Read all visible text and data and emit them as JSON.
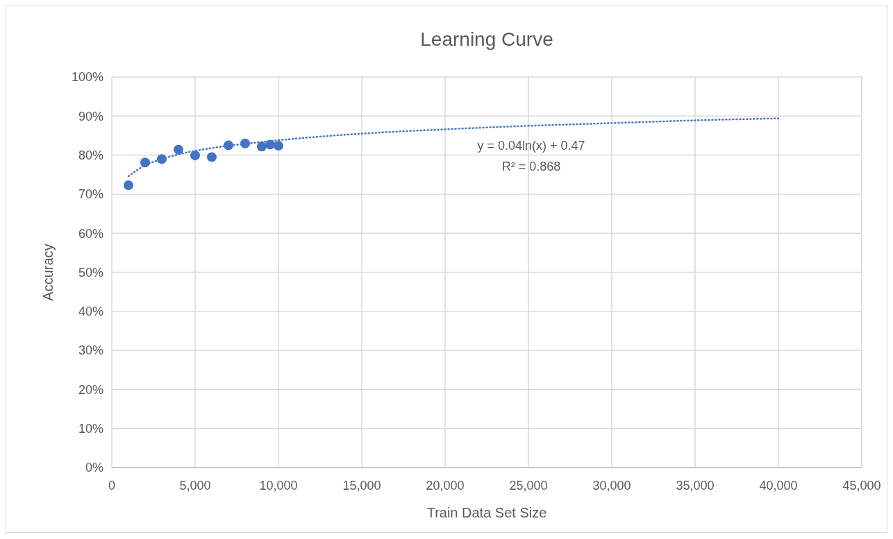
{
  "chart_data": {
    "type": "scatter",
    "title": "Learning Curve",
    "xlabel": "Train Data Set Size",
    "ylabel": "Accuracy",
    "xlim": [
      0,
      45000
    ],
    "xticks": [
      0,
      {
        "value": 5000,
        "label": "5,000"
      },
      {
        "value": 10000,
        "label": "10,000"
      },
      {
        "value": 15000,
        "label": "15,000"
      },
      {
        "value": 20000,
        "label": "20,000"
      },
      {
        "value": 25000,
        "label": "25,000"
      },
      {
        "value": 30000,
        "label": "30,000"
      },
      {
        "value": 35000,
        "label": "35,000"
      },
      {
        "value": 40000,
        "label": "40,000"
      },
      {
        "value": 45000,
        "label": "45,000"
      }
    ],
    "ylim": [
      0,
      100
    ],
    "yticks": [
      {
        "value": 0,
        "label": "0%"
      },
      {
        "value": 10,
        "label": "10%"
      },
      {
        "value": 20,
        "label": "20%"
      },
      {
        "value": 30,
        "label": "30%"
      },
      {
        "value": 40,
        "label": "40%"
      },
      {
        "value": 50,
        "label": "50%"
      },
      {
        "value": 60,
        "label": "60%"
      },
      {
        "value": 70,
        "label": "70%"
      },
      {
        "value": 80,
        "label": "80%"
      },
      {
        "value": 90,
        "label": "90%"
      },
      {
        "value": 100,
        "label": "100%"
      }
    ],
    "grid": true,
    "series": [
      {
        "type": "line",
        "color": "#4472c4",
        "marker": "none",
        "line_style": "dotted",
        "x": [
          1000,
          2000,
          3000,
          4000,
          6000,
          8000,
          10000,
          15000,
          20000,
          25000,
          30000,
          35000,
          40000
        ],
        "values": [
          74.6,
          77.4,
          79.0,
          80.2,
          81.8,
          82.9,
          83.8,
          85.5,
          86.6,
          87.5,
          88.2,
          88.9,
          89.4
        ]
      },
      {
        "color": "#4472c4",
        "marker": "circle",
        "x": [
          1000,
          2000,
          3000,
          4000,
          5000,
          6000,
          7000,
          8000,
          9000,
          9500,
          10000
        ],
        "values": [
          72.3,
          78.1,
          79.0,
          81.4,
          79.9,
          79.5,
          82.5,
          83.0,
          82.2,
          82.7,
          82.4
        ]
      }
    ],
    "annotations": [
      "y = 0.04ln(x) + 0.47",
      "R² = 0.868"
    ]
  }
}
